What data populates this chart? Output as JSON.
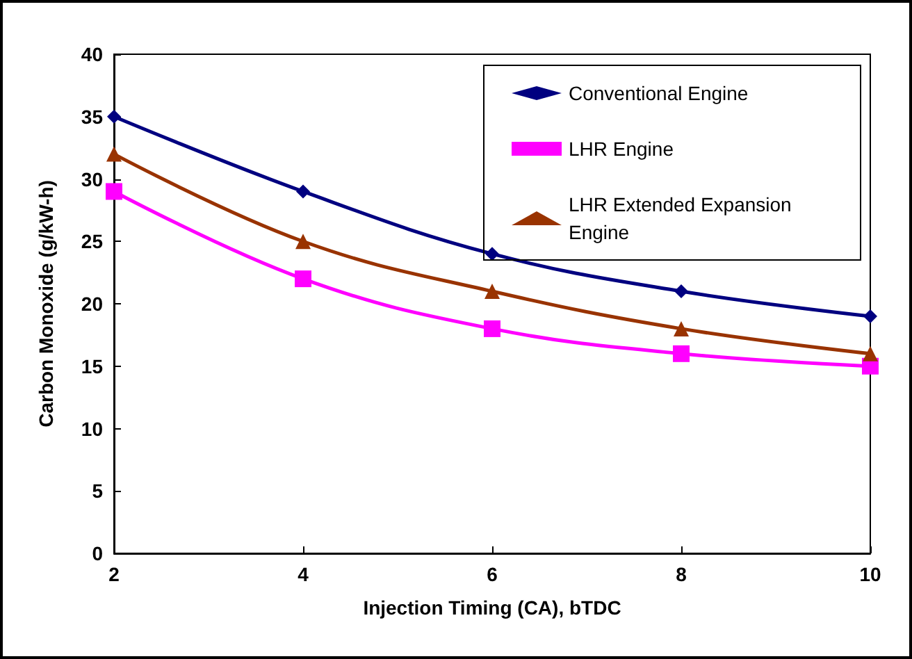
{
  "chart_data": {
    "type": "line",
    "xlabel": "Injection Timing (CA), bTDC",
    "ylabel": "Carbon Monoxide (g/kW-h)",
    "x": [
      2,
      4,
      6,
      8,
      10
    ],
    "series": [
      {
        "name": "Conventional Engine",
        "color": "#000080",
        "marker": "diamond",
        "values": [
          35,
          29,
          24,
          21,
          19
        ]
      },
      {
        "name": "LHR Engine",
        "color": "#ff00ff",
        "marker": "square",
        "values": [
          29,
          22,
          18,
          16,
          15
        ]
      },
      {
        "name": "LHR Extended Expansion Engine",
        "color": "#993300",
        "marker": "triangle",
        "values": [
          32,
          25,
          21,
          18,
          16
        ]
      }
    ],
    "xlim": [
      2,
      10
    ],
    "xticks": [
      2,
      4,
      6,
      8,
      10
    ],
    "ylim": [
      0,
      40
    ],
    "yticks": [
      0,
      5,
      10,
      15,
      20,
      25,
      30,
      35,
      40
    ],
    "grid": false,
    "legend": "top right",
    "line_style": "solid"
  }
}
